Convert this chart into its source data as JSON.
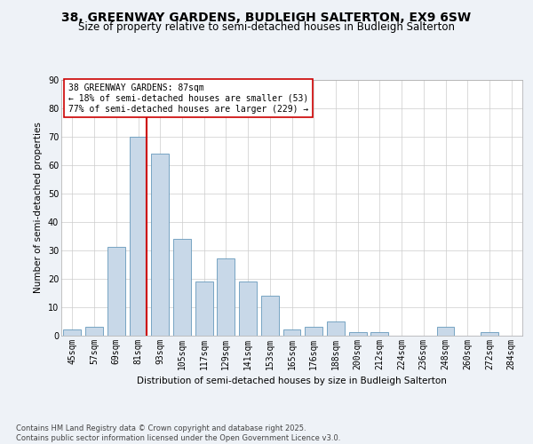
{
  "title": "38, GREENWAY GARDENS, BUDLEIGH SALTERTON, EX9 6SW",
  "subtitle": "Size of property relative to semi-detached houses in Budleigh Salterton",
  "xlabel": "Distribution of semi-detached houses by size in Budleigh Salterton",
  "ylabel": "Number of semi-detached properties",
  "footer": "Contains HM Land Registry data © Crown copyright and database right 2025.\nContains public sector information licensed under the Open Government Licence v3.0.",
  "categories": [
    "45sqm",
    "57sqm",
    "69sqm",
    "81sqm",
    "93sqm",
    "105sqm",
    "117sqm",
    "129sqm",
    "141sqm",
    "153sqm",
    "165sqm",
    "176sqm",
    "188sqm",
    "200sqm",
    "212sqm",
    "224sqm",
    "236sqm",
    "248sqm",
    "260sqm",
    "272sqm",
    "284sqm"
  ],
  "values": [
    2,
    3,
    31,
    70,
    64,
    34,
    19,
    27,
    19,
    14,
    2,
    3,
    5,
    1,
    1,
    0,
    0,
    3,
    0,
    1,
    0
  ],
  "bar_color": "#c8d8e8",
  "bar_edge_color": "#6699bb",
  "subject_line_color": "#cc0000",
  "annotation_text": "38 GREENWAY GARDENS: 87sqm\n← 18% of semi-detached houses are smaller (53)\n77% of semi-detached houses are larger (229) →",
  "annotation_box_color": "#cc0000",
  "ylim": [
    0,
    90
  ],
  "yticks": [
    0,
    10,
    20,
    30,
    40,
    50,
    60,
    70,
    80,
    90
  ],
  "bg_color": "#eef2f7",
  "plot_bg_color": "#ffffff",
  "grid_color": "#cccccc",
  "title_fontsize": 10,
  "subtitle_fontsize": 8.5,
  "axis_label_fontsize": 7.5,
  "tick_fontsize": 7,
  "footer_fontsize": 6,
  "annotation_fontsize": 7
}
